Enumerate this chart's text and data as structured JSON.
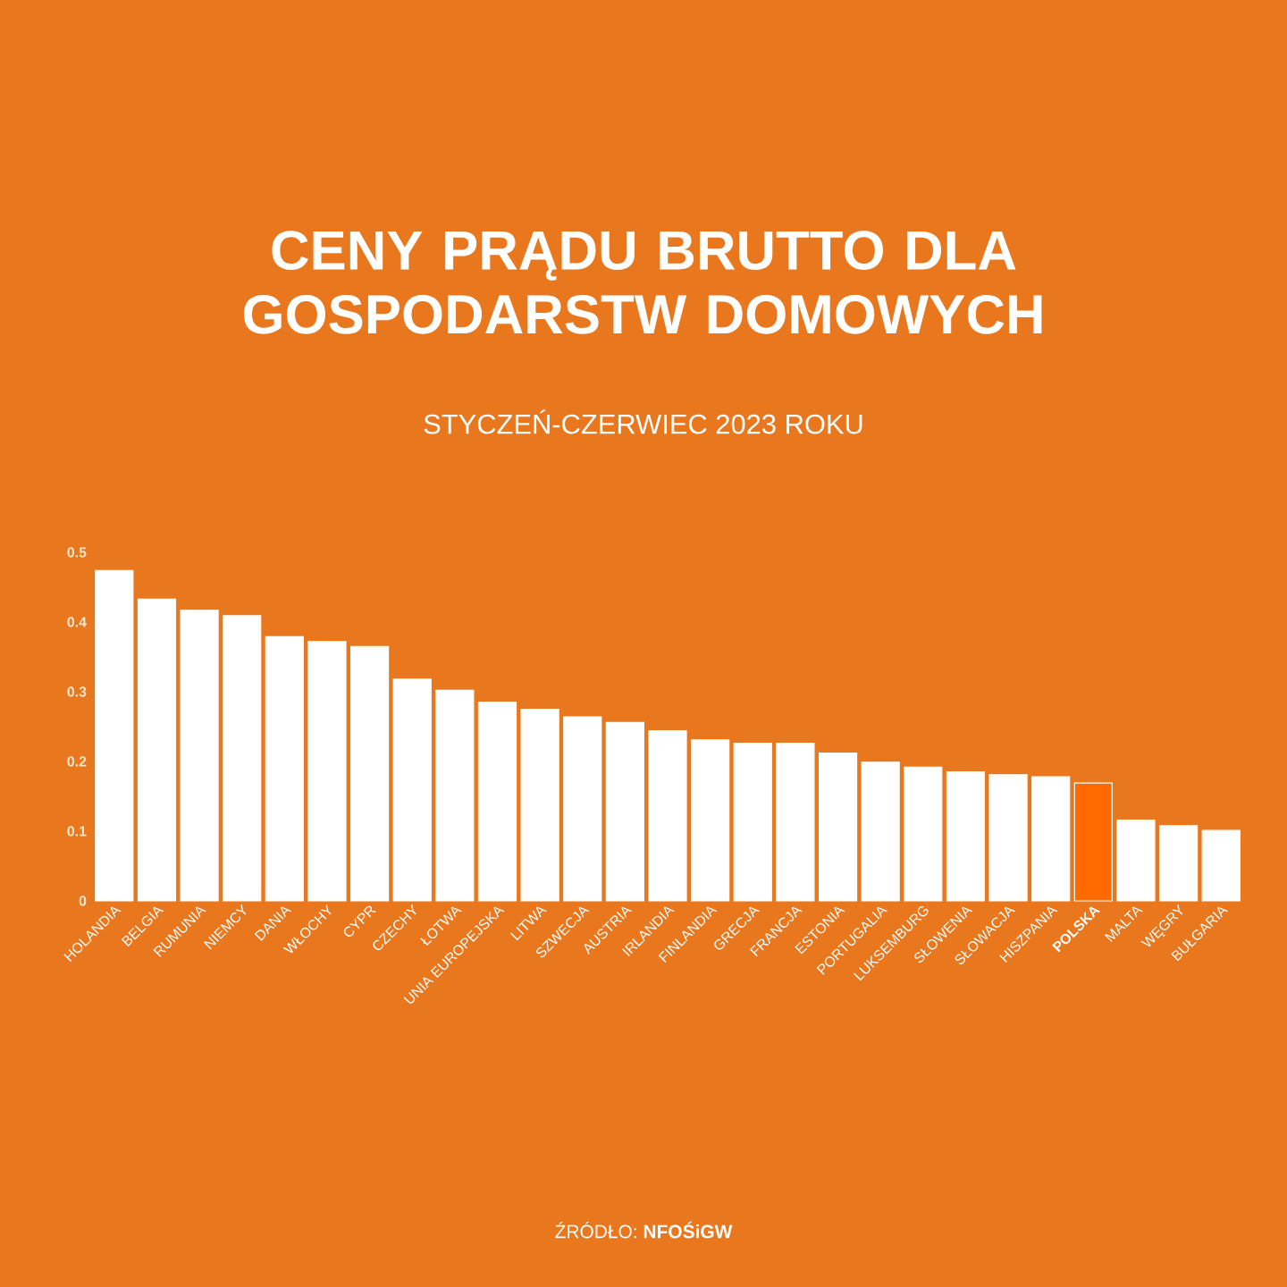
{
  "chart_data": {
    "type": "bar",
    "title": "CENY PRĄDU BRUTTO DLA GOSPODARSTW DOMOWYCH",
    "subtitle": "STYCZEŃ-CZERWIEC 2023 ROKU",
    "categories": [
      "HOLANDIA",
      "BELGIA",
      "RUMUNIA",
      "NIEMCY",
      "DANIA",
      "WŁOCHY",
      "CYPR",
      "CZECHY",
      "ŁOTWA",
      "UNIA EUROPEJSKA",
      "LITWA",
      "SZWECJA",
      "AUSTRIA",
      "IRLANDIA",
      "FINLANDIA",
      "GRECJA",
      "FRANCJA",
      "ESTONIA",
      "PORTUGALIA",
      "LUKSEMBURG",
      "SŁOWENIA",
      "SŁOWACJA",
      "HISZPANIA",
      "**POLSKA**",
      "MALTA",
      "WĘGRY",
      "BUŁGARIA"
    ],
    "values": [
      0.474,
      0.433,
      0.417,
      0.409,
      0.379,
      0.372,
      0.365,
      0.318,
      0.302,
      0.285,
      0.275,
      0.264,
      0.256,
      0.244,
      0.231,
      0.226,
      0.226,
      0.212,
      0.199,
      0.192,
      0.185,
      0.181,
      0.178,
      0.169,
      0.116,
      0.108,
      0.101
    ],
    "colors": [
      "#ffffff",
      "#ffffff",
      "#ffffff",
      "#ffffff",
      "#ffffff",
      "#ffffff",
      "#ffffff",
      "#ffffff",
      "#ffffff",
      "#ffffff",
      "#ffffff",
      "#ffffff",
      "#ffffff",
      "#ffffff",
      "#ffffff",
      "#ffffff",
      "#ffffff",
      "#ffffff",
      "#ffffff",
      "#ffffff",
      "#ffffff",
      "#ffffff",
      "#ffffff",
      "#ff6a00",
      "#ffffff",
      "#ffffff",
      "#ffffff"
    ],
    "ylim": [
      0,
      0.5
    ],
    "yticks": [
      0,
      0.1,
      0.2,
      0.3,
      0.4,
      0.5
    ],
    "annotations": [
      "ŹRÓDŁO: **NFOŚiGW**"
    ]
  }
}
